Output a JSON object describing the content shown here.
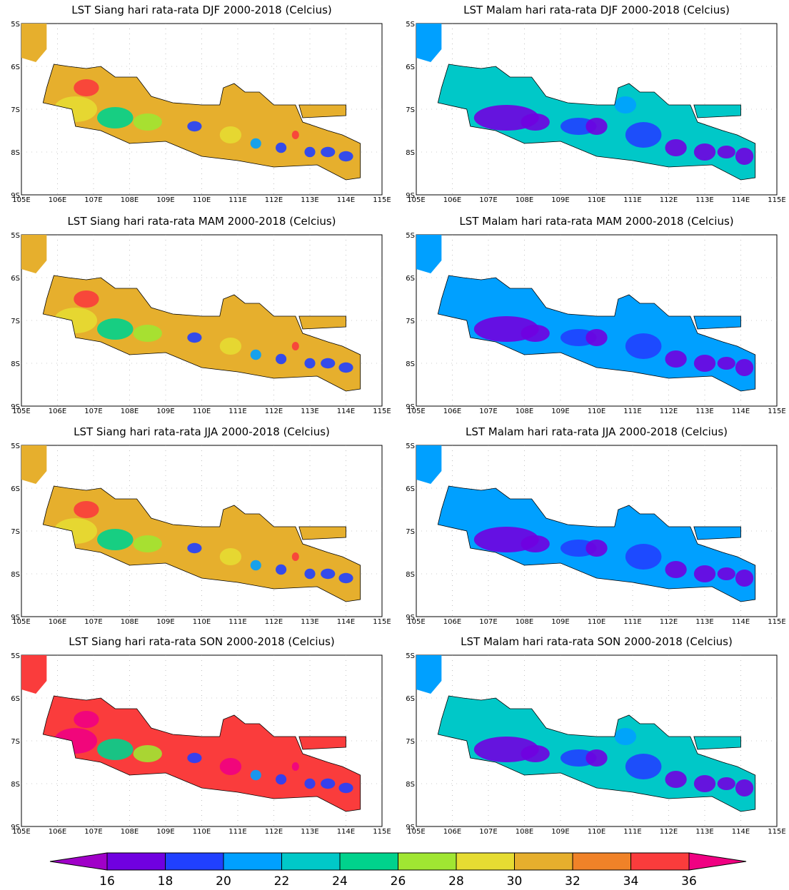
{
  "panels": [
    {
      "title": "LST Siang hari rata-rata DJF 2000-2018 (Celcius)"
    },
    {
      "title": "LST Malam hari rata-rata DJF 2000-2018 (Celcius)"
    },
    {
      "title": "LST Siang hari rata-rata MAM 2000-2018 (Celcius)"
    },
    {
      "title": "LST Malam hari rata-rata MAM 2000-2018 (Celcius)"
    },
    {
      "title": "LST Siang hari rata-rata JJA 2000-2018 (Celcius)"
    },
    {
      "title": "LST Malam hari rata-rata JJA 2000-2018 (Celcius)"
    },
    {
      "title": "LST Siang hari rata-rata SON 2000-2018 (Celcius)"
    },
    {
      "title": "LST Malam hari rata-rata SON 2000-2018 (Celcius)"
    }
  ],
  "map": {
    "xticks": [
      "105E",
      "106E",
      "107E",
      "108E",
      "109E",
      "110E",
      "111E",
      "112E",
      "113E",
      "114E",
      "115E"
    ],
    "yticks": [
      "5S",
      "6S",
      "7S",
      "8S",
      "9S"
    ]
  },
  "colorbar": {
    "levels": [
      16,
      18,
      20,
      22,
      24,
      26,
      28,
      30,
      32,
      34,
      36
    ],
    "colors": [
      "#a000c8",
      "#7000e0",
      "#2040ff",
      "#00a0ff",
      "#00c8c8",
      "#00d28c",
      "#a0e632",
      "#e6dc32",
      "#e6af2d",
      "#f08228",
      "#fa3c3c",
      "#f00082"
    ]
  }
}
